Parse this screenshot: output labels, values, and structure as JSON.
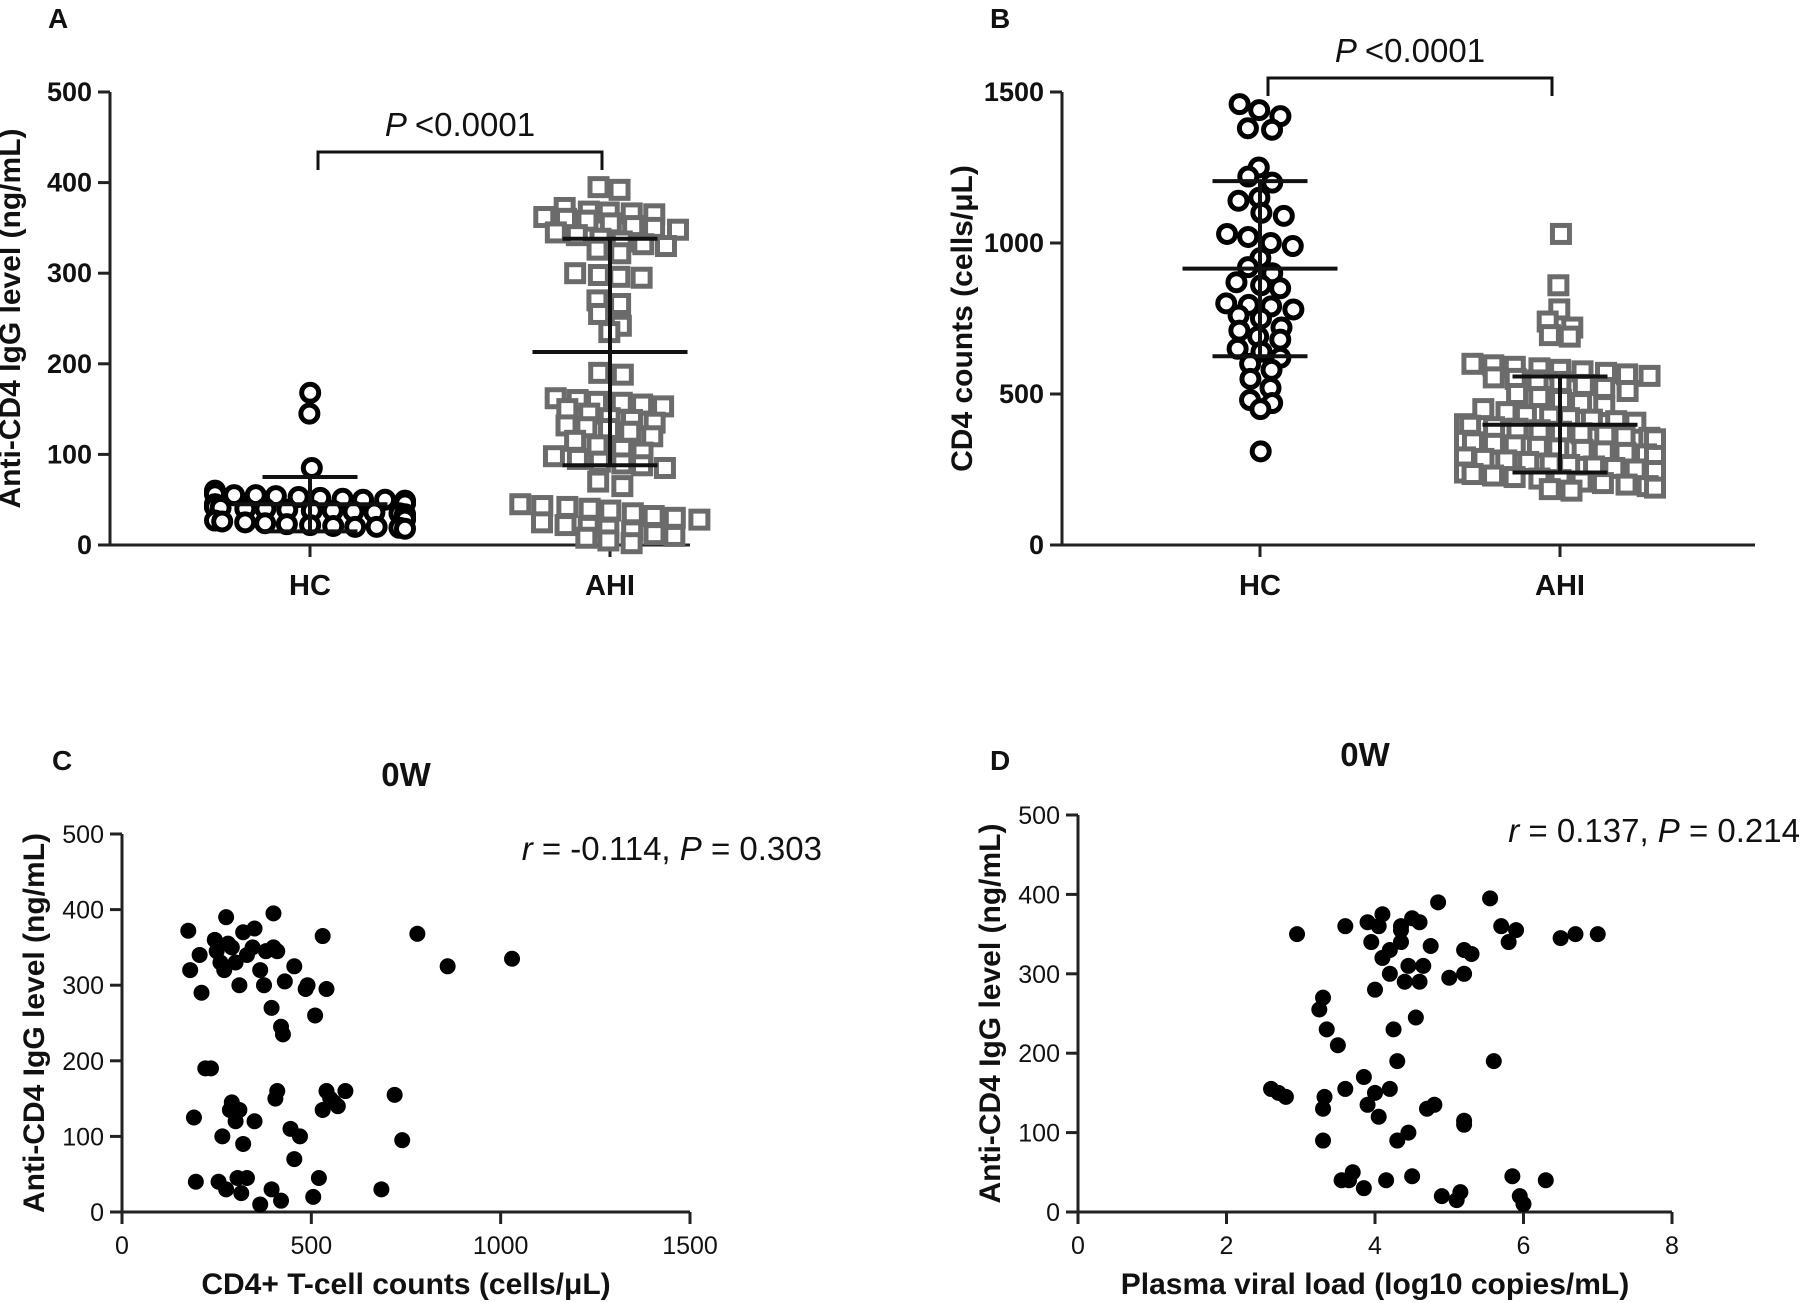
{
  "chart_data": [
    {
      "panel": "A",
      "type": "scatter",
      "subtype": "dot-plot",
      "ylabel": "Anti-CD4 IgG level (ng/mL)",
      "ylim": [
        0,
        500
      ],
      "yticks": [
        "0",
        "100",
        "200",
        "300",
        "400",
        "500"
      ],
      "categories": [
        "HC",
        "AHI"
      ],
      "comparison": {
        "p_italic": "P",
        "p_text": "<0.0001"
      },
      "groups": [
        {
          "name": "HC",
          "marker": "circle",
          "color": "#000000",
          "mean": 45,
          "sd_low": 15,
          "sd_high": 75,
          "values": [
            168,
            145,
            85,
            60,
            58,
            58,
            57,
            57,
            56,
            55,
            55,
            54,
            53,
            52,
            51,
            50,
            50,
            49,
            48,
            48,
            47,
            46,
            46,
            45,
            45,
            44,
            44,
            43,
            42,
            42,
            41,
            40,
            40,
            39,
            38,
            38,
            37,
            36,
            35,
            34,
            33,
            32,
            31,
            30,
            29,
            28,
            27,
            26,
            25,
            24,
            23,
            22,
            21,
            20,
            20,
            19,
            18
          ]
        },
        {
          "name": "AHI",
          "marker": "square",
          "color": "#6b6b6b",
          "mean": 213,
          "sd_low": 88,
          "sd_high": 338,
          "values": [
            395,
            392,
            372,
            368,
            367,
            366,
            365,
            362,
            360,
            358,
            355,
            352,
            350,
            348,
            345,
            342,
            338,
            335,
            332,
            330,
            326,
            322,
            300,
            298,
            296,
            295,
            270,
            266,
            255,
            242,
            235,
            190,
            188,
            162,
            160,
            158,
            157,
            155,
            153,
            150,
            145,
            140,
            138,
            135,
            132,
            130,
            128,
            125,
            120,
            115,
            110,
            106,
            102,
            98,
            95,
            92,
            90,
            88,
            85,
            70,
            65,
            45,
            43,
            42,
            40,
            38,
            35,
            32,
            30,
            28,
            25,
            22,
            20,
            18,
            15,
            12,
            10,
            8,
            5,
            2
          ]
        }
      ]
    },
    {
      "panel": "B",
      "type": "scatter",
      "subtype": "dot-plot",
      "ylabel": "CD4 counts (cells/μL)",
      "ylim": [
        0,
        1500
      ],
      "yticks": [
        "0",
        "500",
        "1000",
        "1500"
      ],
      "categories": [
        "HC",
        "AHI"
      ],
      "comparison": {
        "p_italic": "P",
        "p_text": "<0.0001"
      },
      "groups": [
        {
          "name": "HC",
          "marker": "circle",
          "color": "#000000",
          "mean": 915,
          "sd_low": 625,
          "sd_high": 1205,
          "values": [
            1460,
            1440,
            1420,
            1380,
            1375,
            1250,
            1220,
            1200,
            1150,
            1140,
            1100,
            1090,
            1030,
            1020,
            1000,
            990,
            950,
            920,
            900,
            870,
            860,
            850,
            800,
            795,
            790,
            780,
            760,
            750,
            720,
            710,
            690,
            680,
            650,
            640,
            620,
            600,
            580,
            550,
            520,
            480,
            470,
            450,
            310
          ]
        },
        {
          "name": "AHI",
          "marker": "square",
          "color": "#6b6b6b",
          "mean": 398,
          "sd_low": 240,
          "sd_high": 558,
          "values": [
            1030,
            860,
            780,
            740,
            720,
            695,
            690,
            600,
            595,
            590,
            585,
            580,
            575,
            570,
            565,
            560,
            555,
            550,
            545,
            540,
            530,
            520,
            510,
            500,
            490,
            480,
            470,
            460,
            450,
            440,
            430,
            425,
            420,
            415,
            410,
            405,
            400,
            395,
            390,
            385,
            380,
            375,
            370,
            365,
            360,
            355,
            350,
            345,
            340,
            335,
            330,
            325,
            320,
            315,
            310,
            305,
            300,
            295,
            290,
            285,
            280,
            275,
            270,
            265,
            260,
            255,
            250,
            245,
            240,
            235,
            230,
            225,
            220,
            215,
            210,
            205,
            200,
            195,
            190,
            185,
            180
          ]
        }
      ]
    },
    {
      "panel": "C",
      "type": "scatter",
      "title": "0W",
      "xlabel": "CD4+ T-cell counts (cells/μL)",
      "ylabel": "Anti-CD4 IgG level (ng/mL)",
      "xlim": [
        0,
        1500
      ],
      "ylim": [
        0,
        500
      ],
      "xticks": [
        "0",
        "500",
        "1000",
        "1500"
      ],
      "yticks": [
        "0",
        "100",
        "200",
        "300",
        "400",
        "500"
      ],
      "annotation": {
        "r_label": "r",
        "r_text": " = -0.114, ",
        "p_label": "P",
        "p_text": " = 0.303"
      },
      "points": [
        [
          175,
          372
        ],
        [
          180,
          320
        ],
        [
          205,
          340
        ],
        [
          210,
          290
        ],
        [
          220,
          190
        ],
        [
          235,
          190
        ],
        [
          245,
          360
        ],
        [
          250,
          345
        ],
        [
          260,
          330
        ],
        [
          270,
          320
        ],
        [
          275,
          390
        ],
        [
          280,
          355
        ],
        [
          290,
          350
        ],
        [
          300,
          330
        ],
        [
          310,
          300
        ],
        [
          320,
          370
        ],
        [
          330,
          340
        ],
        [
          345,
          350
        ],
        [
          350,
          375
        ],
        [
          365,
          320
        ],
        [
          375,
          300
        ],
        [
          380,
          345
        ],
        [
          395,
          270
        ],
        [
          400,
          350
        ],
        [
          400,
          395
        ],
        [
          410,
          345
        ],
        [
          420,
          245
        ],
        [
          425,
          235
        ],
        [
          430,
          305
        ],
        [
          455,
          325
        ],
        [
          485,
          295
        ],
        [
          490,
          300
        ],
        [
          510,
          260
        ],
        [
          530,
          365
        ],
        [
          540,
          295
        ],
        [
          780,
          368
        ],
        [
          860,
          325
        ],
        [
          1030,
          335
        ],
        [
          190,
          125
        ],
        [
          195,
          40
        ],
        [
          255,
          40
        ],
        [
          265,
          100
        ],
        [
          275,
          30
        ],
        [
          285,
          135
        ],
        [
          290,
          145
        ],
        [
          300,
          120
        ],
        [
          305,
          45
        ],
        [
          310,
          135
        ],
        [
          315,
          25
        ],
        [
          320,
          90
        ],
        [
          330,
          45
        ],
        [
          350,
          120
        ],
        [
          365,
          10
        ],
        [
          395,
          30
        ],
        [
          405,
          150
        ],
        [
          410,
          160
        ],
        [
          420,
          15
        ],
        [
          445,
          110
        ],
        [
          455,
          70
        ],
        [
          470,
          100
        ],
        [
          505,
          20
        ],
        [
          520,
          45
        ],
        [
          530,
          135
        ],
        [
          540,
          160
        ],
        [
          550,
          150
        ],
        [
          560,
          145
        ],
        [
          570,
          140
        ],
        [
          590,
          160
        ],
        [
          685,
          30
        ],
        [
          720,
          155
        ],
        [
          740,
          95
        ]
      ]
    },
    {
      "panel": "D",
      "type": "scatter",
      "title": "0W",
      "xlabel": "Plasma viral load (log10 copies/mL)",
      "ylabel": "Anti-CD4 IgG level (ng/mL)",
      "xlim": [
        0,
        8
      ],
      "ylim": [
        0,
        500
      ],
      "xticks": [
        "0",
        "2",
        "4",
        "6",
        "8"
      ],
      "yticks": [
        "0",
        "100",
        "200",
        "300",
        "400",
        "500"
      ],
      "annotation": {
        "r_label": "r",
        "r_text": " = 0.137, ",
        "p_label": "P",
        "p_text": " = 0.214"
      },
      "points": [
        [
          2.6,
          155
        ],
        [
          2.7,
          150
        ],
        [
          2.8,
          145
        ],
        [
          2.95,
          350
        ],
        [
          3.25,
          255
        ],
        [
          3.3,
          270
        ],
        [
          3.3,
          130
        ],
        [
          3.3,
          90
        ],
        [
          3.32,
          145
        ],
        [
          3.35,
          230
        ],
        [
          3.5,
          210
        ],
        [
          3.55,
          40
        ],
        [
          3.6,
          360
        ],
        [
          3.6,
          155
        ],
        [
          3.65,
          40
        ],
        [
          3.7,
          50
        ],
        [
          3.85,
          30
        ],
        [
          3.85,
          170
        ],
        [
          3.9,
          135
        ],
        [
          3.9,
          365
        ],
        [
          3.95,
          340
        ],
        [
          4.0,
          280
        ],
        [
          4.0,
          150
        ],
        [
          4.05,
          360
        ],
        [
          4.05,
          120
        ],
        [
          4.1,
          320
        ],
        [
          4.15,
          40
        ],
        [
          4.2,
          300
        ],
        [
          4.2,
          155
        ],
        [
          4.25,
          230
        ],
        [
          4.3,
          190
        ],
        [
          4.3,
          90
        ],
        [
          4.35,
          360
        ],
        [
          4.35,
          340
        ],
        [
          4.4,
          290
        ],
        [
          4.45,
          310
        ],
        [
          4.45,
          100
        ],
        [
          4.5,
          370
        ],
        [
          4.5,
          45
        ],
        [
          4.55,
          245
        ],
        [
          4.6,
          290
        ],
        [
          4.65,
          310
        ],
        [
          4.7,
          130
        ],
        [
          4.75,
          335
        ],
        [
          4.8,
          135
        ],
        [
          4.85,
          390
        ],
        [
          4.9,
          20
        ],
        [
          5.0,
          295
        ],
        [
          5.1,
          15
        ],
        [
          5.15,
          25
        ],
        [
          5.2,
          115
        ],
        [
          5.2,
          330
        ],
        [
          5.3,
          325
        ],
        [
          5.55,
          395
        ],
        [
          5.6,
          190
        ],
        [
          5.7,
          360
        ],
        [
          5.85,
          45
        ],
        [
          5.9,
          355
        ],
        [
          5.95,
          20
        ],
        [
          6.0,
          10
        ],
        [
          6.3,
          40
        ],
        [
          6.5,
          345
        ],
        [
          6.7,
          350
        ],
        [
          7.0,
          350
        ],
        [
          4.1,
          375
        ],
        [
          4.2,
          330
        ],
        [
          4.35,
          355
        ],
        [
          4.6,
          365
        ],
        [
          5.2,
          300
        ],
        [
          5.8,
          340
        ],
        [
          5.2,
          110
        ]
      ]
    }
  ],
  "labels": {
    "panel_a": "A",
    "panel_b": "B",
    "panel_c": "C",
    "panel_d": "D"
  }
}
